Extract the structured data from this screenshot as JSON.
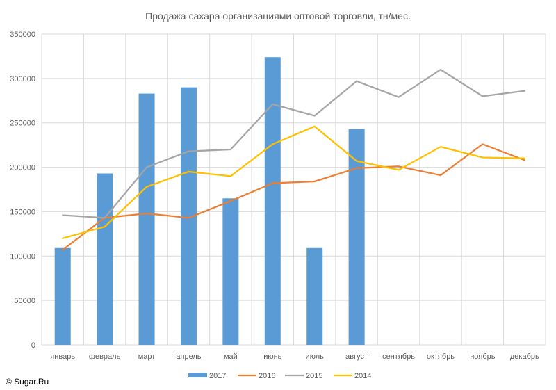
{
  "chart_data": {
    "type": "bar",
    "title": "Продажа сахара организациями оптовой торговли, тн/мес.",
    "xlabel": "",
    "ylabel": "",
    "categories": [
      "январь",
      "февраль",
      "март",
      "апрель",
      "май",
      "июнь",
      "июль",
      "август",
      "сентябрь",
      "октябрь",
      "ноябрь",
      "декабрь"
    ],
    "ylim": [
      0,
      350000
    ],
    "yticks": [
      0,
      50000,
      100000,
      150000,
      200000,
      250000,
      300000,
      350000
    ],
    "ytick_labels": [
      "0",
      "50000",
      "100000",
      "150000",
      "200000",
      "250000",
      "300000",
      "350000"
    ],
    "grid": true,
    "legend_position": "bottom",
    "series": [
      {
        "name": "2017",
        "type": "bar",
        "color": "#5B9BD5",
        "values": [
          109000,
          193000,
          283000,
          290000,
          165000,
          324000,
          109000,
          243000,
          null,
          null,
          null,
          null
        ]
      },
      {
        "name": "2016",
        "type": "line",
        "color": "#ED7D31",
        "values": [
          107000,
          143000,
          148000,
          143000,
          162000,
          182000,
          184000,
          199000,
          201000,
          191000,
          226000,
          208000
        ]
      },
      {
        "name": "2015",
        "type": "line",
        "color": "#A5A5A5",
        "values": [
          146000,
          143000,
          200000,
          218000,
          220000,
          271000,
          258000,
          297000,
          279000,
          310000,
          280000,
          286000
        ]
      },
      {
        "name": "2014",
        "type": "line",
        "color": "#FFC000",
        "values": [
          120000,
          133000,
          178000,
          195000,
          190000,
          226000,
          246000,
          207000,
          197000,
          223000,
          211000,
          210000
        ]
      }
    ]
  },
  "copyright": "© Sugar.Ru"
}
